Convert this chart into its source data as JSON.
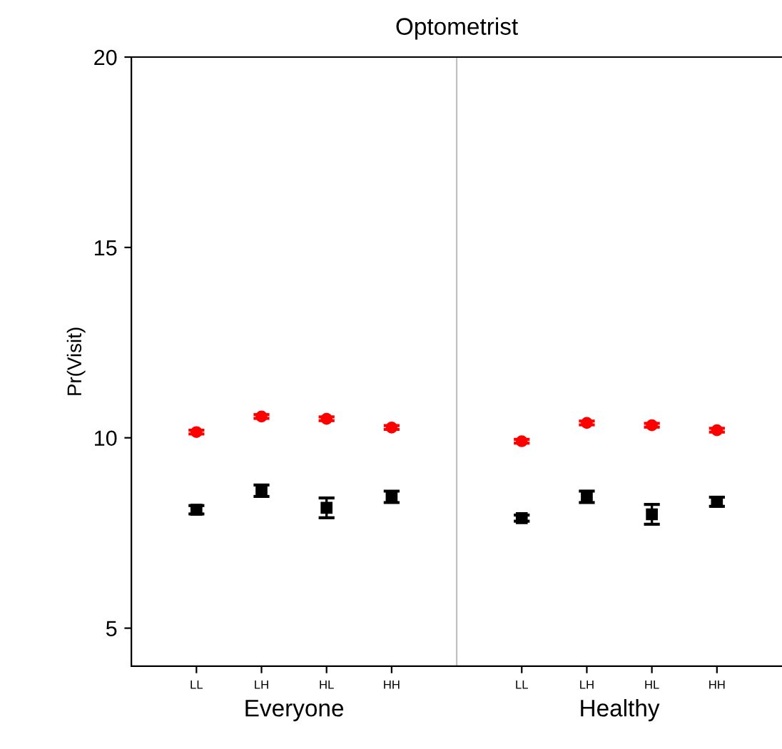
{
  "chart_data": [
    {
      "type": "scatter",
      "title": "Optometrist",
      "xlabel": "Everyone",
      "ylabel": "Pr(Visit)",
      "categories": [
        "LL",
        "LH",
        "HL",
        "HH"
      ],
      "ylim": [
        4,
        20
      ],
      "yticks": [
        5,
        10,
        15,
        20
      ],
      "grid": false,
      "series": [
        {
          "color": "#ff0000",
          "marker": "circle",
          "values": [
            10.15,
            10.56,
            10.5,
            10.27
          ],
          "errors": [
            0.05,
            0.05,
            0.05,
            0.05
          ]
        },
        {
          "color": "#000000",
          "marker": "square",
          "values": [
            8.11,
            8.61,
            8.16,
            8.45
          ],
          "errors": [
            0.11,
            0.15,
            0.26,
            0.15
          ]
        }
      ]
    },
    {
      "type": "scatter",
      "xlabel": "Healthy",
      "categories": [
        "LL",
        "LH",
        "HL",
        "HH"
      ],
      "ylim": [
        4,
        20
      ],
      "tick_labels": "x",
      "grid": false,
      "series": [
        {
          "color": "#ff0000",
          "marker": "circle",
          "values": [
            9.91,
            10.39,
            10.33,
            10.2
          ],
          "errors": [
            0.05,
            0.05,
            0.05,
            0.05
          ]
        },
        {
          "color": "#000000",
          "marker": "square",
          "values": [
            7.89,
            8.45,
            7.99,
            8.32
          ],
          "errors": [
            0.08,
            0.15,
            0.26,
            0.12
          ]
        }
      ]
    }
  ]
}
